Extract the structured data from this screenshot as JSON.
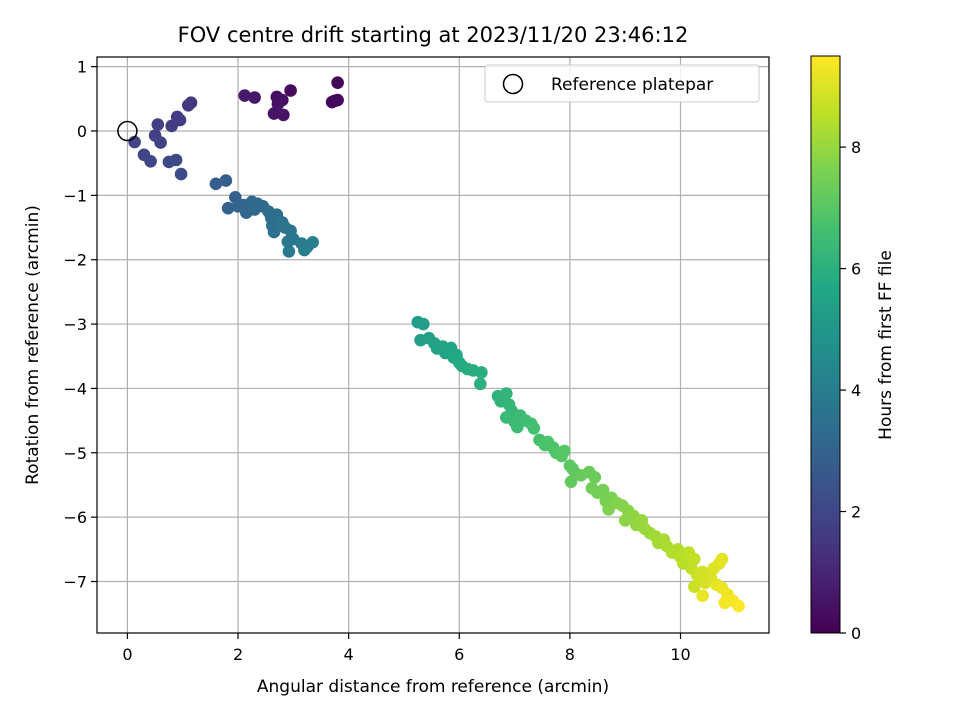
{
  "chart_data": {
    "type": "scatter",
    "title": "FOV centre drift starting at 2023/11/20 23:46:12",
    "xlabel": "Angular distance from reference (arcmin)",
    "ylabel": "Rotation from reference (arcmin)",
    "xlim": [
      -0.55,
      11.6
    ],
    "ylim": [
      -7.8,
      1.15
    ],
    "xticks": [
      0,
      2,
      4,
      6,
      8,
      10
    ],
    "yticks": [
      1,
      0,
      -1,
      -2,
      -3,
      -4,
      -5,
      -6,
      -7
    ],
    "grid": true,
    "legend": {
      "position": "top-right",
      "entries": [
        "Reference platepar"
      ]
    },
    "reference_point": {
      "x": 0,
      "y": 0
    },
    "colorbar": {
      "label": "Hours from first FF file",
      "min": 0,
      "max": 9.5,
      "ticks": [
        0,
        2,
        4,
        6,
        8
      ],
      "colormap": "viridis"
    },
    "points": [
      [
        3.8,
        0.75,
        0.1
      ],
      [
        3.75,
        0.47,
        0.15
      ],
      [
        3.7,
        0.45,
        0.2
      ],
      [
        3.8,
        0.48,
        0.25
      ],
      [
        2.95,
        0.63,
        0.3
      ],
      [
        2.7,
        0.53,
        0.35
      ],
      [
        2.8,
        0.48,
        0.4
      ],
      [
        2.72,
        0.42,
        0.45
      ],
      [
        2.65,
        0.27,
        0.5
      ],
      [
        2.82,
        0.25,
        0.55
      ],
      [
        2.3,
        0.52,
        0.6
      ],
      [
        2.12,
        0.55,
        0.65
      ],
      [
        1.15,
        0.44,
        1.5
      ],
      [
        1.1,
        0.4,
        1.55
      ],
      [
        0.95,
        0.17,
        1.6
      ],
      [
        0.9,
        0.22,
        1.65
      ],
      [
        0.8,
        0.08,
        1.7
      ],
      [
        0.55,
        0.1,
        1.75
      ],
      [
        0.5,
        -0.07,
        1.8
      ],
      [
        0.6,
        -0.18,
        1.85
      ],
      [
        0.13,
        -0.17,
        1.9
      ],
      [
        0.3,
        -0.37,
        1.95
      ],
      [
        0.42,
        -0.47,
        2.0
      ],
      [
        0.75,
        -0.48,
        2.05
      ],
      [
        0.88,
        -0.45,
        2.1
      ],
      [
        0.97,
        -0.67,
        2.15
      ],
      [
        1.6,
        -0.82,
        2.8
      ],
      [
        1.78,
        -0.77,
        2.85
      ],
      [
        1.95,
        -1.03,
        2.9
      ],
      [
        1.82,
        -1.2,
        2.95
      ],
      [
        2.0,
        -1.17,
        3.0
      ],
      [
        2.1,
        -1.15,
        3.05
      ],
      [
        2.15,
        -1.27,
        3.1
      ],
      [
        2.25,
        -1.1,
        3.15
      ],
      [
        2.35,
        -1.13,
        3.2
      ],
      [
        2.3,
        -1.22,
        3.25
      ],
      [
        2.45,
        -1.17,
        3.3
      ],
      [
        2.55,
        -1.25,
        3.35
      ],
      [
        2.6,
        -1.35,
        3.4
      ],
      [
        2.7,
        -1.3,
        3.45
      ],
      [
        2.62,
        -1.47,
        3.5
      ],
      [
        2.65,
        -1.57,
        3.55
      ],
      [
        2.8,
        -1.42,
        3.6
      ],
      [
        2.85,
        -1.5,
        3.65
      ],
      [
        2.95,
        -1.55,
        3.7
      ],
      [
        2.9,
        -1.72,
        3.75
      ],
      [
        3.0,
        -1.68,
        3.8
      ],
      [
        2.92,
        -1.87,
        3.85
      ],
      [
        3.15,
        -1.75,
        3.9
      ],
      [
        3.25,
        -1.8,
        3.95
      ],
      [
        3.2,
        -1.85,
        4.0
      ],
      [
        3.35,
        -1.73,
        4.05
      ],
      [
        5.25,
        -2.97,
        5.2
      ],
      [
        5.35,
        -3.0,
        5.25
      ],
      [
        5.3,
        -3.25,
        5.3
      ],
      [
        5.45,
        -3.22,
        5.35
      ],
      [
        5.55,
        -3.3,
        5.4
      ],
      [
        5.6,
        -3.38,
        5.45
      ],
      [
        5.7,
        -3.35,
        5.5
      ],
      [
        5.75,
        -3.45,
        5.55
      ],
      [
        5.85,
        -3.37,
        5.6
      ],
      [
        5.9,
        -3.52,
        5.65
      ],
      [
        5.95,
        -3.48,
        5.7
      ],
      [
        6.0,
        -3.6,
        5.75
      ],
      [
        6.05,
        -3.65,
        5.8
      ],
      [
        6.15,
        -3.7,
        5.85
      ],
      [
        6.25,
        -3.72,
        5.9
      ],
      [
        6.4,
        -3.75,
        5.95
      ],
      [
        6.38,
        -3.93,
        6.0
      ],
      [
        6.7,
        -4.12,
        6.1
      ],
      [
        6.75,
        -4.2,
        6.15
      ],
      [
        6.85,
        -4.08,
        6.2
      ],
      [
        6.9,
        -4.25,
        6.25
      ],
      [
        6.95,
        -4.35,
        6.3
      ],
      [
        6.85,
        -4.45,
        6.35
      ],
      [
        7.0,
        -4.52,
        6.4
      ],
      [
        7.1,
        -4.42,
        6.45
      ],
      [
        7.05,
        -4.6,
        6.5
      ],
      [
        7.2,
        -4.5,
        6.55
      ],
      [
        7.3,
        -4.55,
        6.6
      ],
      [
        7.35,
        -4.62,
        6.65
      ],
      [
        7.45,
        -4.8,
        6.7
      ],
      [
        7.55,
        -4.88,
        6.75
      ],
      [
        7.6,
        -4.83,
        6.8
      ],
      [
        7.7,
        -4.92,
        6.85
      ],
      [
        7.75,
        -5.0,
        6.9
      ],
      [
        7.85,
        -5.05,
        6.95
      ],
      [
        7.9,
        -4.97,
        7.0
      ],
      [
        8.0,
        -5.2,
        7.05
      ],
      [
        8.05,
        -5.25,
        7.1
      ],
      [
        8.1,
        -5.32,
        7.15
      ],
      [
        8.02,
        -5.45,
        7.2
      ],
      [
        8.2,
        -5.35,
        7.25
      ],
      [
        8.35,
        -5.3,
        7.3
      ],
      [
        8.45,
        -5.38,
        7.35
      ],
      [
        8.4,
        -5.55,
        7.4
      ],
      [
        8.5,
        -5.62,
        7.45
      ],
      [
        8.6,
        -5.58,
        7.5
      ],
      [
        8.65,
        -5.75,
        7.55
      ],
      [
        8.75,
        -5.7,
        7.6
      ],
      [
        8.7,
        -5.88,
        7.65
      ],
      [
        8.85,
        -5.78,
        7.7
      ],
      [
        8.95,
        -5.82,
        7.75
      ],
      [
        9.05,
        -5.9,
        7.8
      ],
      [
        9.0,
        -6.05,
        7.85
      ],
      [
        9.15,
        -5.98,
        7.9
      ],
      [
        9.2,
        -6.12,
        7.95
      ],
      [
        9.3,
        -6.05,
        8.0
      ],
      [
        9.35,
        -6.18,
        8.05
      ],
      [
        9.45,
        -6.25,
        8.1
      ],
      [
        9.55,
        -6.3,
        8.15
      ],
      [
        9.6,
        -6.4,
        8.2
      ],
      [
        9.7,
        -6.35,
        8.25
      ],
      [
        9.75,
        -6.45,
        8.3
      ],
      [
        9.85,
        -6.55,
        8.35
      ],
      [
        9.95,
        -6.5,
        8.4
      ],
      [
        10.0,
        -6.62,
        8.45
      ],
      [
        10.05,
        -6.72,
        8.5
      ],
      [
        10.15,
        -6.55,
        8.55
      ],
      [
        10.2,
        -6.8,
        8.6
      ],
      [
        10.25,
        -6.65,
        8.65
      ],
      [
        10.3,
        -6.9,
        8.7
      ],
      [
        10.25,
        -7.08,
        8.75
      ],
      [
        10.35,
        -6.95,
        8.8
      ],
      [
        10.4,
        -6.85,
        8.85
      ],
      [
        10.45,
        -7.02,
        8.9
      ],
      [
        10.55,
        -6.95,
        8.95
      ],
      [
        10.6,
        -6.8,
        9.0
      ],
      [
        10.7,
        -6.72,
        9.05
      ],
      [
        10.75,
        -6.65,
        9.1
      ],
      [
        10.65,
        -7.05,
        9.15
      ],
      [
        10.4,
        -7.22,
        9.2
      ],
      [
        10.75,
        -7.1,
        9.25
      ],
      [
        10.85,
        -7.2,
        9.3
      ],
      [
        10.8,
        -7.33,
        9.35
      ],
      [
        10.95,
        -7.3,
        9.4
      ],
      [
        11.05,
        -7.38,
        9.45
      ]
    ]
  }
}
